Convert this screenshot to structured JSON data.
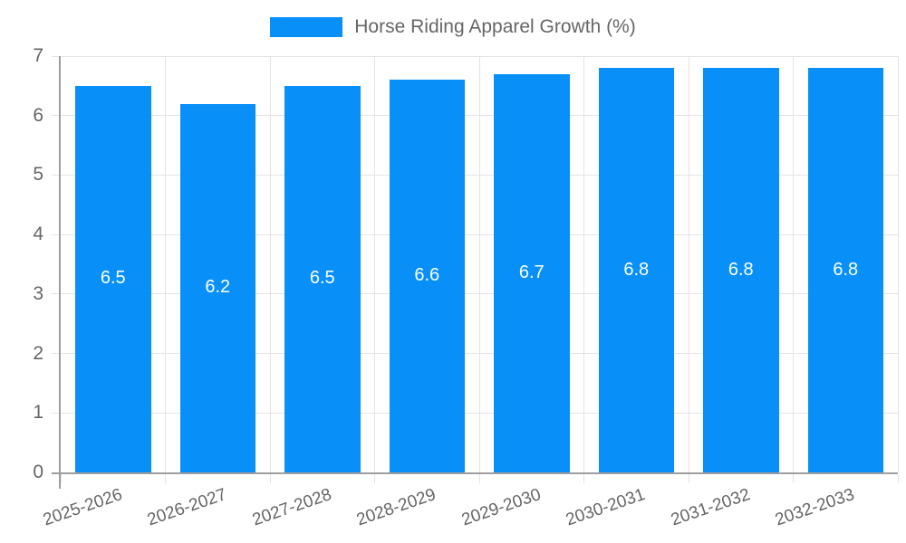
{
  "chart_data": {
    "type": "bar",
    "legend": {
      "label": "Horse Riding Apparel Growth (%)",
      "position": "top"
    },
    "categories": [
      "2025-2026",
      "2026-2027",
      "2027-2028",
      "2028-2029",
      "2029-2030",
      "2030-2031",
      "2031-2032",
      "2032-2033"
    ],
    "series": [
      {
        "name": "Horse Riding Apparel Growth (%)",
        "values": [
          6.5,
          6.2,
          6.5,
          6.6,
          6.7,
          6.8,
          6.8,
          6.8
        ],
        "value_labels": [
          "6.5",
          "6.2",
          "6.5",
          "6.6",
          "6.7",
          "6.8",
          "6.8",
          "6.8"
        ]
      }
    ],
    "xlabel": "",
    "ylabel": "",
    "ylim": [
      0,
      7
    ],
    "y_tick_labels": [
      "0",
      "1",
      "2",
      "3",
      "4",
      "5",
      "6",
      "7"
    ],
    "grid": true,
    "legend_position": "top",
    "colors": {
      "bar": "#0890f8",
      "grid": "#e3e3e3",
      "axis": "#9e9e9e",
      "tick_label": "#666666",
      "data_label": "#ffffff"
    }
  }
}
